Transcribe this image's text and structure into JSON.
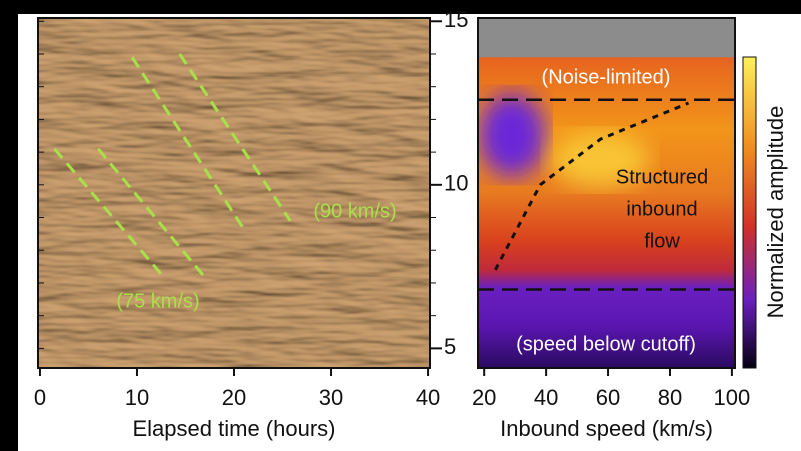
{
  "chart_data": [
    {
      "type": "image",
      "x_label": "Elapsed time (hours)",
      "xlim": [
        -0.2,
        40.2
      ],
      "xticks": [
        0,
        10,
        20,
        30,
        40
      ],
      "ylim": [
        4.4,
        15.1
      ],
      "yticks": [
        5,
        10,
        15
      ],
      "guide_color": "#a8e04a",
      "guides": [
        {
          "x": [
            1.5,
            12.7
          ],
          "y": [
            11.1,
            7.2
          ]
        },
        {
          "x": [
            6.0,
            17.2
          ],
          "y": [
            11.1,
            7.1
          ]
        },
        {
          "x": [
            9.5,
            20.9
          ],
          "y": [
            13.9,
            8.7
          ]
        },
        {
          "x": [
            14.4,
            25.8
          ],
          "y": [
            14.0,
            8.9
          ]
        }
      ],
      "annotations": [
        "(75 km/s)",
        "(90 km/s)"
      ]
    },
    {
      "type": "heatmap",
      "x_label": "Inbound speed (km/s)",
      "xlim": [
        18,
        101
      ],
      "xticks": [
        20,
        40,
        60,
        80,
        100
      ],
      "ylim": [
        4.4,
        15.1
      ],
      "masked_above": 13.9,
      "cutoffs": [
        12.6,
        6.8
      ],
      "curve": {
        "x": [
          23.6,
          38.1,
          57.6,
          86.0
        ],
        "y": [
          7.4,
          10.0,
          11.4,
          12.5
        ]
      },
      "noise_label": "(Noise-limited)",
      "flow_label": [
        "Structured",
        "inbound",
        "flow"
      ],
      "cutoff_label": "(speed below cutoff)",
      "colorbar_label": "Normalized amplitude"
    }
  ]
}
